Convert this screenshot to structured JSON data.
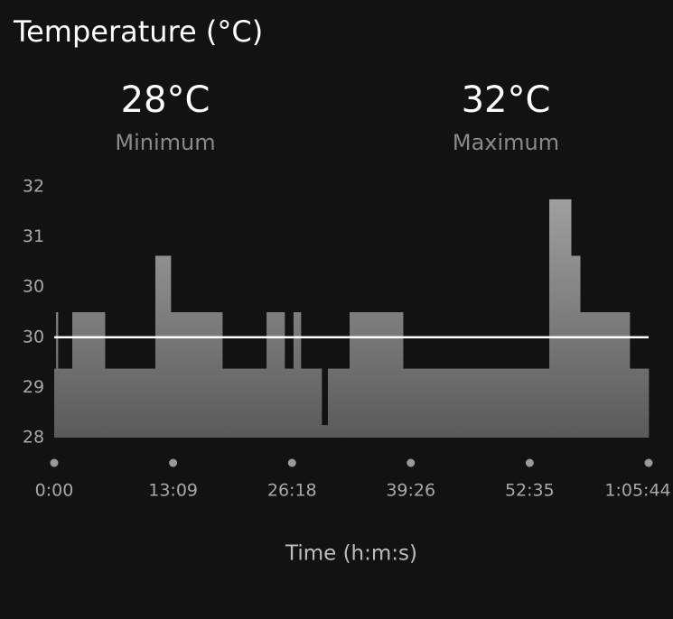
{
  "chart_data": {
    "type": "step-area",
    "title": "Temperature (°C)",
    "stats": [
      {
        "value": "28°C",
        "label": "Minimum"
      },
      {
        "value": "32°C",
        "label": "Maximum"
      }
    ],
    "x_label": "Time (h:m:s)",
    "x": [
      0,
      12,
      24,
      120,
      336,
      671,
      773,
      1115,
      1409,
      1528,
      1588,
      1636,
      1774,
      1816,
      1960,
      2314,
      3285,
      3429,
      3489,
      3818
    ],
    "values": [
      29.1,
      30.0,
      29.1,
      30.0,
      29.1,
      30.9,
      30.0,
      29.1,
      30.0,
      29.1,
      30.0,
      29.1,
      28.2,
      29.1,
      30.0,
      29.1,
      31.8,
      30.9,
      30.0,
      29.1
    ],
    "reference_line": 29.6,
    "xlim": [
      0,
      3944
    ],
    "xticks": [
      {
        "value": 0,
        "label": "0:00"
      },
      {
        "value": 789,
        "label": "13:09"
      },
      {
        "value": 1578,
        "label": "26:18"
      },
      {
        "value": 2366,
        "label": "39:26"
      },
      {
        "value": 3155,
        "label": "52:35"
      },
      {
        "value": 3944,
        "label": "1:05:44"
      }
    ],
    "ylim": [
      28,
      32
    ],
    "yticks": [
      28,
      {
        "value": 28.8,
        "label": "29"
      },
      {
        "value": 29.6,
        "label": "30"
      },
      {
        "value": 30.4,
        "label": "30"
      },
      {
        "value": 31.2,
        "label": "31"
      },
      32
    ],
    "color_top": "#a3a3a3",
    "color_bottom": "#5a5a5a",
    "reference_color": "#ffffff"
  }
}
